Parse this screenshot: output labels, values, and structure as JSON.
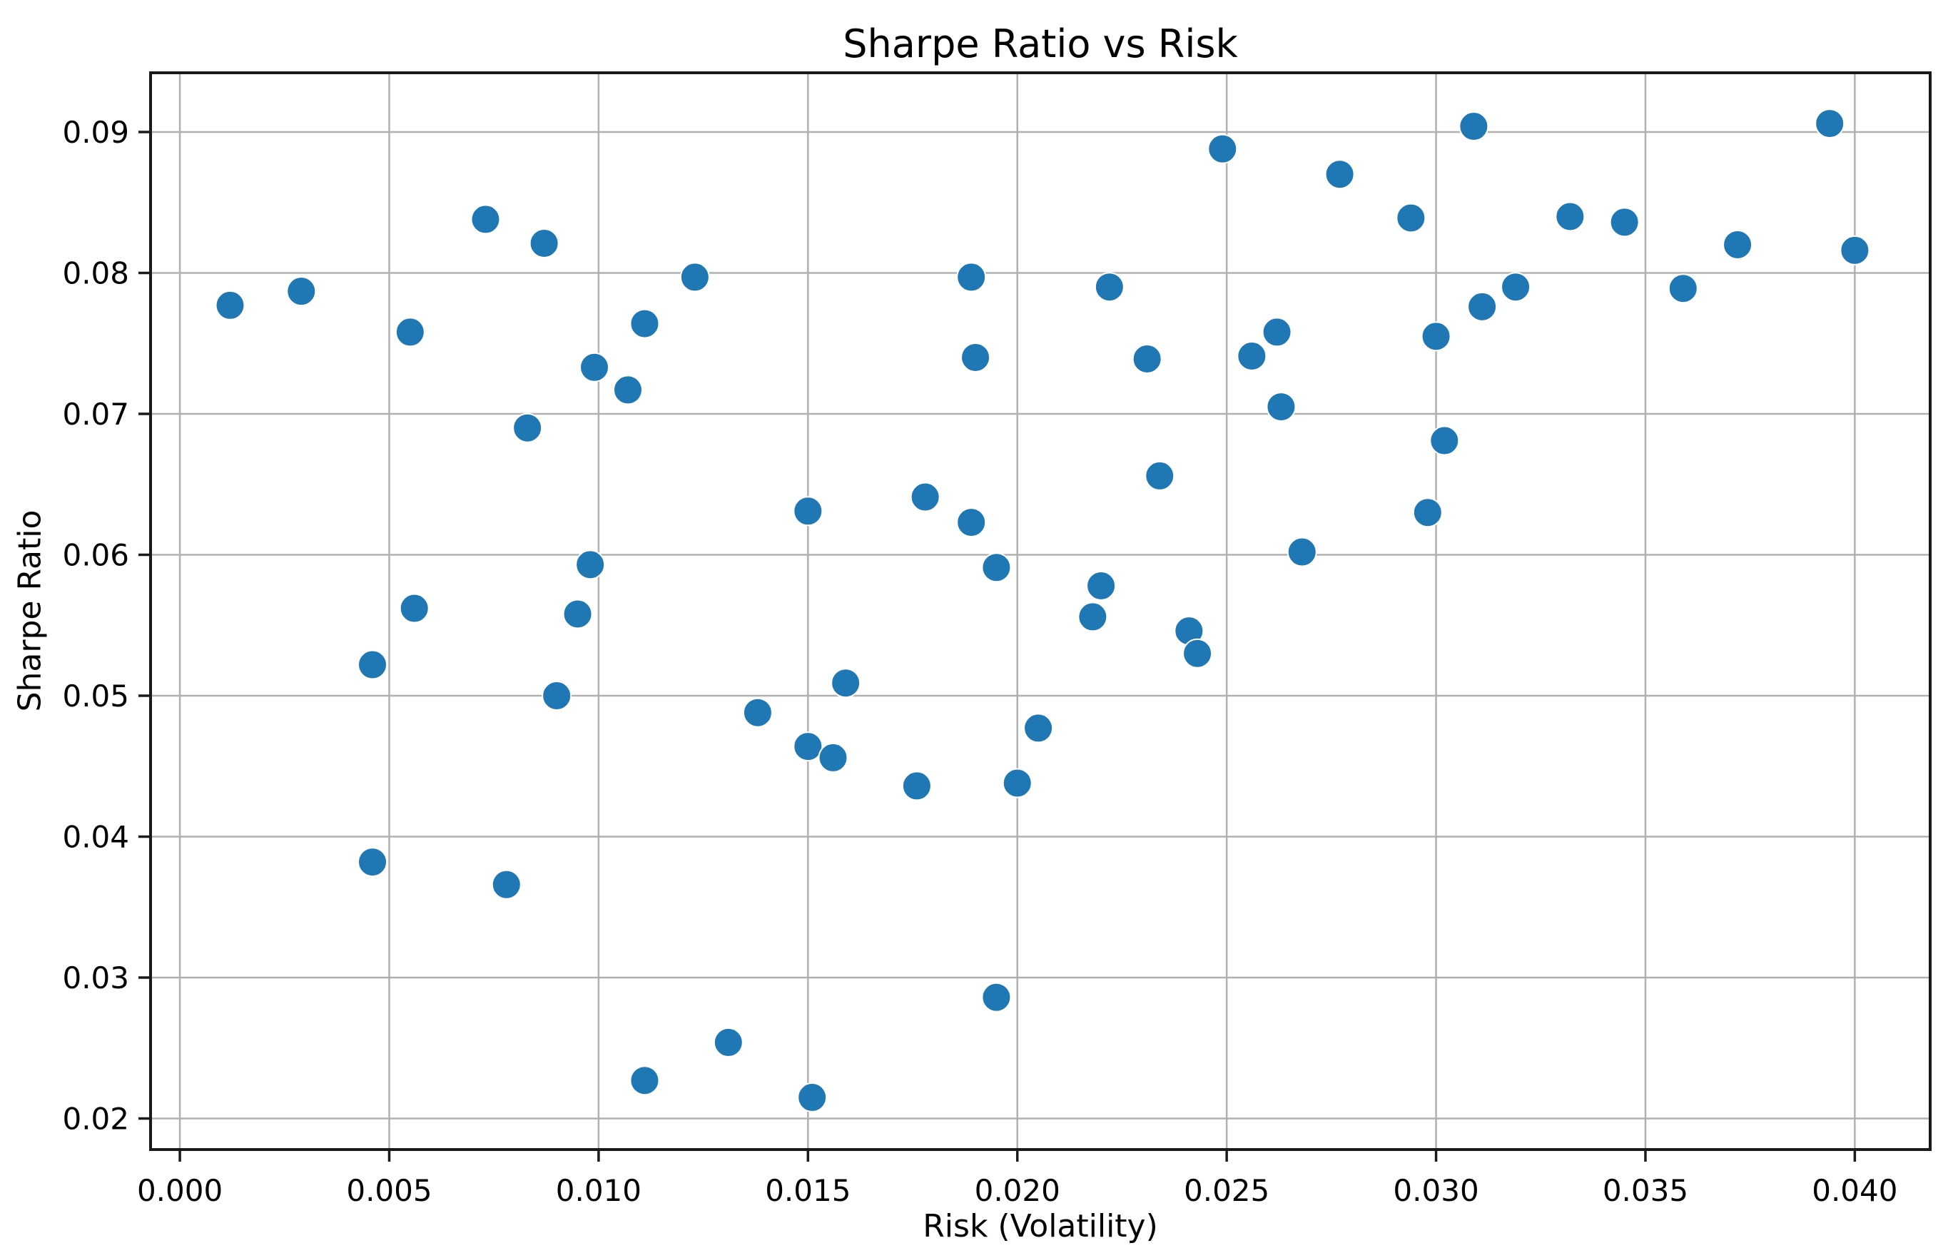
{
  "chart_data": {
    "type": "scatter",
    "title": "Sharpe Ratio vs Risk",
    "xlabel": "Risk (Volatility)",
    "ylabel": "Sharpe Ratio",
    "xlim": [
      -0.0007,
      0.0418
    ],
    "ylim": [
      0.0178,
      0.0942
    ],
    "grid": true,
    "legend": null,
    "xticks": {
      "values": [
        0.0,
        0.005,
        0.01,
        0.015,
        0.02,
        0.025,
        0.03,
        0.035,
        0.04
      ],
      "labels": [
        "0.000",
        "0.005",
        "0.010",
        "0.015",
        "0.020",
        "0.025",
        "0.030",
        "0.035",
        "0.040"
      ]
    },
    "yticks": {
      "values": [
        0.02,
        0.03,
        0.04,
        0.05,
        0.06,
        0.07,
        0.08,
        0.09
      ],
      "labels": [
        "0.02",
        "0.03",
        "0.04",
        "0.05",
        "0.06",
        "0.07",
        "0.08",
        "0.09"
      ]
    },
    "colors": {
      "marker": "#1f77b4",
      "marker_edge": "#ffffff",
      "grid": "#b0b0b0",
      "spine": "#1a1a1a",
      "text": "#000000",
      "background": "#ffffff"
    },
    "marker_radius_px": 20,
    "points": [
      [
        0.0012,
        0.0777
      ],
      [
        0.0029,
        0.0787
      ],
      [
        0.0046,
        0.0382
      ],
      [
        0.0046,
        0.0522
      ],
      [
        0.0055,
        0.0758
      ],
      [
        0.0056,
        0.0562
      ],
      [
        0.0073,
        0.0838
      ],
      [
        0.0078,
        0.0366
      ],
      [
        0.0083,
        0.069
      ],
      [
        0.0087,
        0.0821
      ],
      [
        0.009,
        0.05
      ],
      [
        0.0095,
        0.0558
      ],
      [
        0.0098,
        0.0593
      ],
      [
        0.0099,
        0.0733
      ],
      [
        0.0107,
        0.0717
      ],
      [
        0.0111,
        0.0227
      ],
      [
        0.0111,
        0.0764
      ],
      [
        0.0123,
        0.0797
      ],
      [
        0.0131,
        0.0254
      ],
      [
        0.0138,
        0.0488
      ],
      [
        0.015,
        0.0464
      ],
      [
        0.015,
        0.0631
      ],
      [
        0.0151,
        0.0215
      ],
      [
        0.0156,
        0.0456
      ],
      [
        0.0159,
        0.0509
      ],
      [
        0.0176,
        0.0436
      ],
      [
        0.0178,
        0.0641
      ],
      [
        0.0189,
        0.0623
      ],
      [
        0.0189,
        0.0797
      ],
      [
        0.019,
        0.074
      ],
      [
        0.0195,
        0.0286
      ],
      [
        0.0195,
        0.0591
      ],
      [
        0.02,
        0.0438
      ],
      [
        0.0205,
        0.0477
      ],
      [
        0.0218,
        0.0556
      ],
      [
        0.022,
        0.0578
      ],
      [
        0.0222,
        0.079
      ],
      [
        0.0231,
        0.0739
      ],
      [
        0.0234,
        0.0656
      ],
      [
        0.0241,
        0.0546
      ],
      [
        0.0243,
        0.053
      ],
      [
        0.0249,
        0.0888
      ],
      [
        0.0256,
        0.0741
      ],
      [
        0.0262,
        0.0758
      ],
      [
        0.0263,
        0.0705
      ],
      [
        0.0268,
        0.0602
      ],
      [
        0.0277,
        0.087
      ],
      [
        0.0294,
        0.0839
      ],
      [
        0.0298,
        0.063
      ],
      [
        0.03,
        0.0755
      ],
      [
        0.0302,
        0.0681
      ],
      [
        0.0309,
        0.0904
      ],
      [
        0.0311,
        0.0776
      ],
      [
        0.0319,
        0.079
      ],
      [
        0.0332,
        0.084
      ],
      [
        0.0345,
        0.0836
      ],
      [
        0.0359,
        0.0789
      ],
      [
        0.0372,
        0.082
      ],
      [
        0.0394,
        0.0906
      ],
      [
        0.04,
        0.0816
      ]
    ]
  }
}
